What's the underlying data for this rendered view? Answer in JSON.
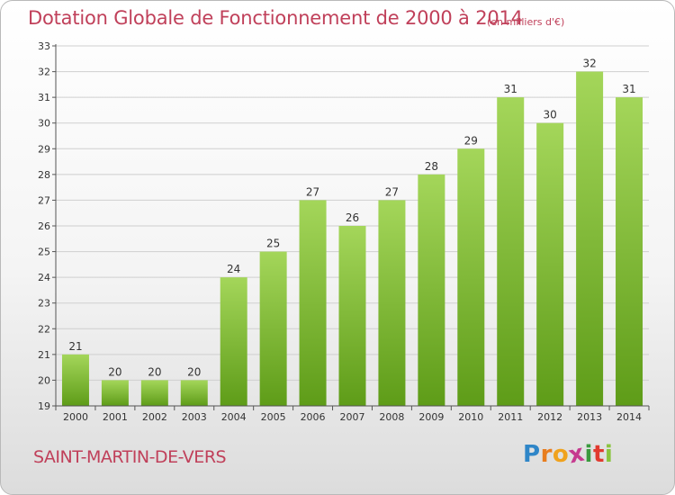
{
  "header": {
    "title": "Dotation Globale de Fonctionnement de 2000 à 2014",
    "unit_note": "(en milliers d'€)"
  },
  "footer": {
    "commune": "SAINT-MARTIN-DE-VERS"
  },
  "logo": {
    "letters": [
      "P",
      "r",
      "o",
      "x",
      "i",
      "t",
      "i"
    ],
    "colors": [
      "#2f86c8",
      "#e87d1e",
      "#f0a21d",
      "#c6398f",
      "#3a9a3e",
      "#e13a2f",
      "#8ac43f"
    ]
  },
  "colors": {
    "title": "#c0405a",
    "bar_top": "#a4d65a",
    "bar_bottom": "#5e9c18",
    "grid": "#cfcfcf",
    "axis": "#555555"
  },
  "chart_data": {
    "type": "bar",
    "categories": [
      "2000",
      "2001",
      "2002",
      "2003",
      "2004",
      "2005",
      "2006",
      "2007",
      "2008",
      "2009",
      "2010",
      "2011",
      "2012",
      "2013",
      "2014"
    ],
    "values": [
      21,
      20,
      20,
      20,
      24,
      25,
      27,
      26,
      27,
      28,
      29,
      31,
      30,
      32,
      31
    ],
    "title": "Dotation Globale de Fonctionnement de 2000 à 2014",
    "subtitle": "(en milliers d'€)",
    "xlabel": "",
    "ylabel": "",
    "ylim": [
      19,
      33
    ],
    "yticks": [
      19,
      20,
      21,
      22,
      23,
      24,
      25,
      26,
      27,
      28,
      29,
      30,
      31,
      32,
      33
    ],
    "grid": true,
    "data_labels": true
  }
}
